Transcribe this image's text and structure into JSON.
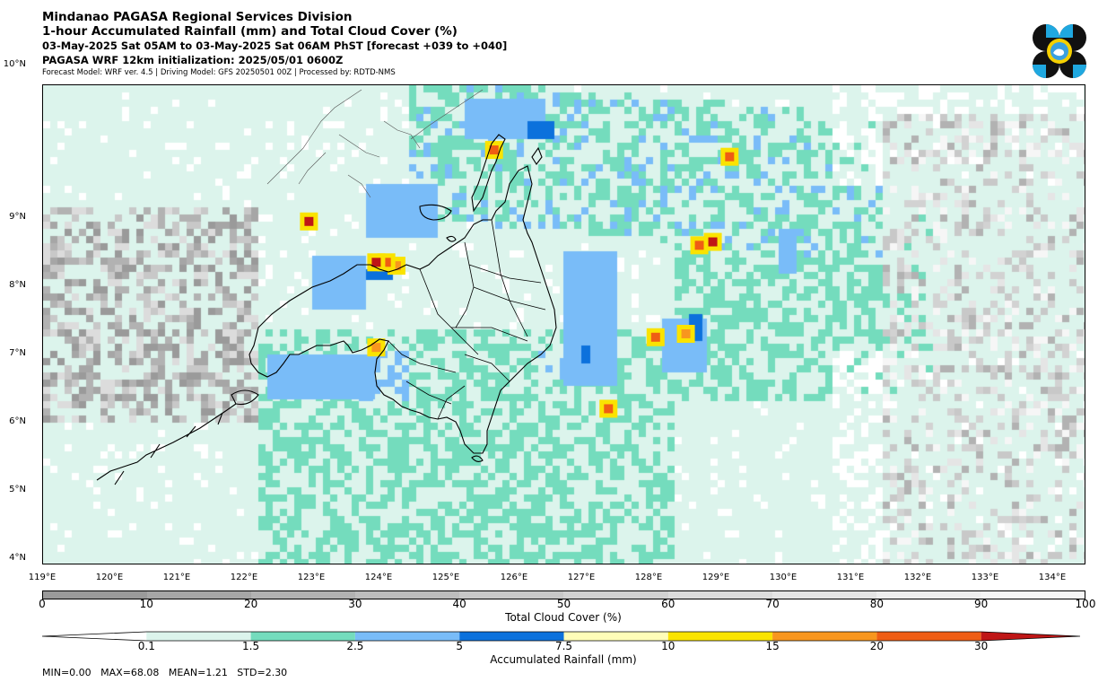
{
  "header": {
    "line1": "Mindanao PAGASA Regional Services Division",
    "line2": "1-hour Accumulated Rainfall (mm) and Total Cloud Cover (%)",
    "line3": "03-May-2025 Sat 05AM to 03-May-2025 Sat 06AM PhST [forecast +039 to +040]",
    "line4": "PAGASA WRF 12km initialization: 2025/05/01 0600Z",
    "line5": "Forecast Model: WRF ver. 4.5 | Driving Model: GFS 20250501 00Z | Processed by: RDTD-NMS"
  },
  "map": {
    "lon_range": [
      119,
      134.5
    ],
    "lat_range": [
      3.9,
      10.95
    ],
    "lat_labels": [
      {
        "value": 10,
        "text": "10°N"
      },
      {
        "value": 9,
        "text": "9°N"
      },
      {
        "value": 8,
        "text": "8°N"
      },
      {
        "value": 7,
        "text": "7°N"
      },
      {
        "value": 6,
        "text": "6°N"
      },
      {
        "value": 5,
        "text": "5°N"
      },
      {
        "value": 4,
        "text": "4°N"
      }
    ],
    "lon_labels": [
      {
        "value": 119,
        "text": "119°E"
      },
      {
        "value": 120,
        "text": "120°E"
      },
      {
        "value": 121,
        "text": "121°E"
      },
      {
        "value": 122,
        "text": "122°E"
      },
      {
        "value": 123,
        "text": "123°E"
      },
      {
        "value": 124,
        "text": "124°E"
      },
      {
        "value": 125,
        "text": "125°E"
      },
      {
        "value": 126,
        "text": "126°E"
      },
      {
        "value": 127,
        "text": "127°E"
      },
      {
        "value": 128,
        "text": "128°E"
      },
      {
        "value": 129,
        "text": "129°E"
      },
      {
        "value": 130,
        "text": "130°E"
      },
      {
        "value": 131,
        "text": "131°E"
      },
      {
        "value": 132,
        "text": "132°E"
      },
      {
        "value": 133,
        "text": "133°E"
      },
      {
        "value": 134,
        "text": "134°E"
      }
    ],
    "rain_cells": [
      {
        "lon": 123.95,
        "lat": 8.35,
        "mm": 30
      },
      {
        "lon": 124.1,
        "lat": 8.35,
        "mm": 20
      },
      {
        "lon": 124.25,
        "lat": 8.3,
        "mm": 15
      },
      {
        "lon": 125.7,
        "lat": 10.0,
        "mm": 20
      },
      {
        "lon": 122.95,
        "lat": 8.95,
        "mm": 30
      },
      {
        "lon": 128.95,
        "lat": 8.65,
        "mm": 30
      },
      {
        "lon": 128.75,
        "lat": 8.6,
        "mm": 20
      },
      {
        "lon": 129.2,
        "lat": 9.9,
        "mm": 20
      },
      {
        "lon": 128.1,
        "lat": 7.25,
        "mm": 20
      },
      {
        "lon": 127.4,
        "lat": 6.2,
        "mm": 20
      },
      {
        "lon": 123.95,
        "lat": 7.1,
        "mm": 15
      },
      {
        "lon": 128.55,
        "lat": 7.3,
        "mm": 15
      }
    ]
  },
  "cloud_colorbar": {
    "title": "Total Cloud Cover (%)",
    "ticks": [
      "0",
      "10",
      "20",
      "30",
      "40",
      "50",
      "60",
      "70",
      "80",
      "90",
      "100"
    ],
    "colors": [
      "#9a9a9a",
      "#a6a6a6",
      "#b2b2b2",
      "#bdbdbd",
      "#c8c8c8",
      "#d2d2d2",
      "#dcdcdc",
      "#e5e5e5",
      "#eeeeee",
      "#f6f6f6"
    ]
  },
  "rain_colorbar": {
    "title": "Accumulated Rainfall (mm)",
    "ticks": [
      "0.1",
      "1.5",
      "2.5",
      "5",
      "7.5",
      "10",
      "15",
      "20",
      "30"
    ],
    "colors": [
      "#ffffff",
      "#dcf4ec",
      "#74dcbd",
      "#79bcf8",
      "#0c71dc",
      "#fffdb8",
      "#fae300",
      "#f8961e",
      "#ef5d14",
      "#bf1616"
    ]
  },
  "stats": {
    "text": "MIN=0.00   MAX=68.08   MEAN=1.21   STD=2.30"
  }
}
